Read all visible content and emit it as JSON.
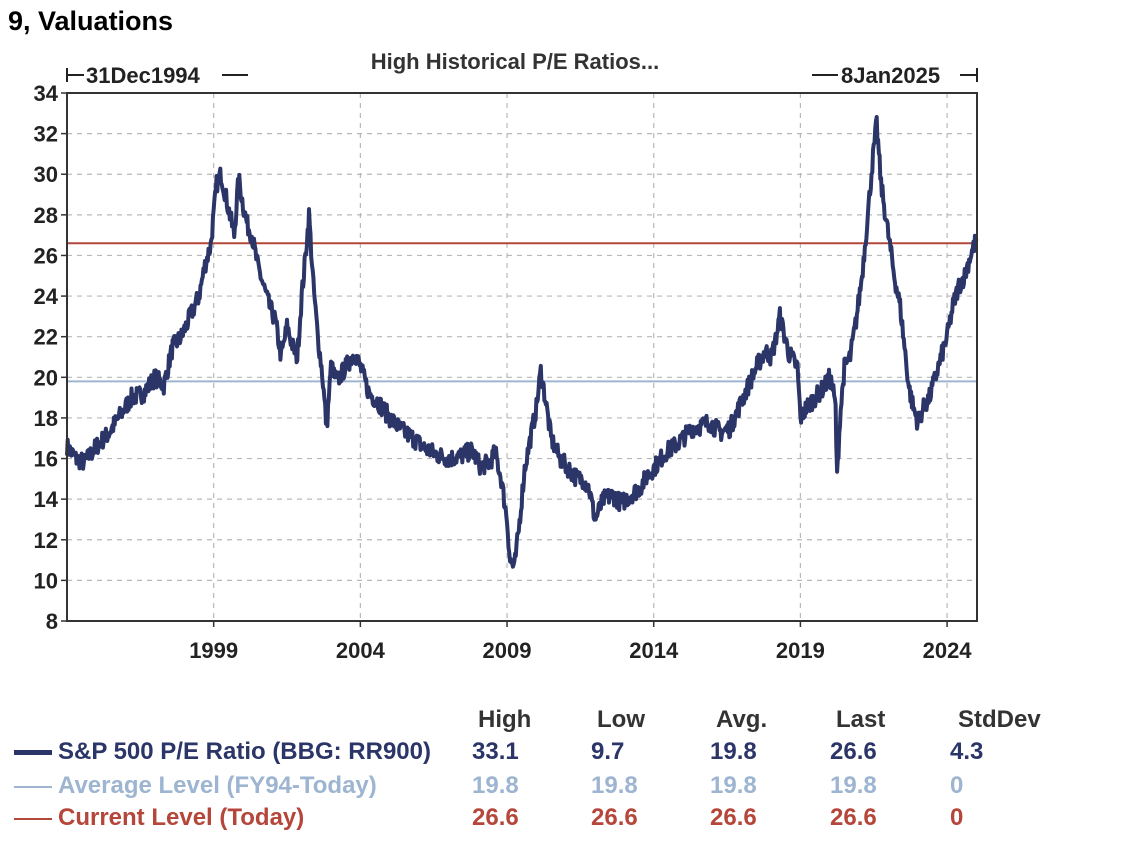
{
  "page_title": "9, Valuations",
  "colors": {
    "series": "#2b3567",
    "average": "#9db5d0",
    "current": "#b5463a",
    "grid": "#b8b8b8"
  },
  "chart_data": {
    "type": "line",
    "title": "High Historical P/E Ratios...",
    "start_label": "31Dec1994",
    "end_label": "8Jan2025",
    "xlim": [
      1994.0,
      2025.02
    ],
    "ylim": [
      8,
      34
    ],
    "yticks": [
      8,
      10,
      12,
      14,
      16,
      18,
      20,
      22,
      24,
      26,
      28,
      30,
      32,
      34
    ],
    "xticks": [
      1999,
      2004,
      2009,
      2014,
      2019,
      2024
    ],
    "xtick_labels": [
      "1999",
      "2004",
      "2009",
      "2014",
      "2019",
      "2024"
    ],
    "reference_lines": [
      {
        "name": "Average Level (FY94-Today)",
        "value": 19.8
      },
      {
        "name": "Current Level (Today)",
        "value": 26.6
      }
    ],
    "series": [
      {
        "name": "S&P 500 P/E Ratio (BBG: RR900)",
        "x": [
          1994.0,
          1994.3,
          1994.6,
          1995.0,
          1995.4,
          1995.8,
          1996.2,
          1996.6,
          1997.0,
          1997.3,
          1997.6,
          1997.9,
          1998.2,
          1998.5,
          1998.7,
          1998.9,
          1999.0,
          1999.1,
          1999.25,
          1999.4,
          1999.55,
          1999.7,
          1999.85,
          2000.0,
          2000.15,
          2000.3,
          2000.5,
          2000.7,
          2000.9,
          2001.1,
          2001.3,
          2001.5,
          2001.7,
          2001.85,
          2002.0,
          2002.1,
          2002.25,
          2002.4,
          2002.55,
          2002.7,
          2002.85,
          2003.0,
          2003.2,
          2003.5,
          2003.8,
          2004.0,
          2004.3,
          2004.6,
          2005.0,
          2005.4,
          2005.8,
          2006.2,
          2006.6,
          2007.0,
          2007.4,
          2007.8,
          2008.1,
          2008.4,
          2008.6,
          2008.8,
          2009.0,
          2009.1,
          2009.25,
          2009.4,
          2009.6,
          2009.8,
          2010.0,
          2010.15,
          2010.3,
          2010.5,
          2010.8,
          2011.1,
          2011.4,
          2011.6,
          2011.8,
          2012.0,
          2012.3,
          2012.6,
          2012.9,
          2013.2,
          2013.5,
          2013.8,
          2014.1,
          2014.4,
          2014.7,
          2015.0,
          2015.3,
          2015.6,
          2015.9,
          2016.1,
          2016.3,
          2016.6,
          2016.9,
          2017.2,
          2017.5,
          2017.8,
          2018.0,
          2018.15,
          2018.3,
          2018.6,
          2018.9,
          2019.0,
          2019.2,
          2019.5,
          2019.8,
          2020.0,
          2020.1,
          2020.2,
          2020.25,
          2020.35,
          2020.5,
          2020.7,
          2020.9,
          2021.1,
          2021.3,
          2021.45,
          2021.6,
          2021.75,
          2021.9,
          2022.05,
          2022.2,
          2022.4,
          2022.55,
          2022.7,
          2022.85,
          2023.0,
          2023.2,
          2023.4,
          2023.6,
          2023.8,
          2024.0,
          2024.2,
          2024.4,
          2024.6,
          2024.8,
          2025.0
        ],
        "values": [
          16.6,
          16.0,
          15.8,
          16.6,
          17.2,
          18.1,
          19.0,
          19.2,
          20.0,
          19.6,
          21.5,
          22.0,
          23.0,
          24.0,
          25.5,
          26.5,
          28.0,
          29.5,
          30.0,
          29.0,
          28.0,
          27.0,
          29.8,
          28.5,
          27.5,
          27.0,
          25.5,
          24.5,
          23.5,
          22.8,
          21.0,
          22.5,
          21.5,
          21.0,
          24.0,
          25.5,
          28.0,
          24.5,
          22.0,
          20.2,
          17.5,
          20.5,
          19.8,
          20.5,
          21.2,
          20.5,
          19.2,
          18.8,
          18.0,
          17.4,
          17.0,
          16.5,
          16.2,
          16.0,
          16.1,
          16.4,
          15.6,
          15.8,
          16.3,
          15.0,
          13.0,
          11.0,
          10.6,
          12.5,
          15.5,
          17.0,
          18.5,
          20.3,
          19.0,
          17.0,
          16.0,
          15.5,
          15.0,
          15.0,
          14.5,
          13.0,
          14.0,
          14.2,
          13.8,
          14.2,
          14.5,
          15.2,
          15.7,
          16.3,
          16.6,
          17.0,
          17.5,
          17.6,
          17.8,
          17.5,
          17.3,
          17.5,
          18.5,
          19.5,
          20.5,
          21.3,
          21.0,
          21.8,
          23.0,
          21.2,
          20.5,
          18.0,
          18.5,
          19.0,
          19.5,
          20.0,
          19.5,
          18.5,
          15.0,
          18.0,
          20.5,
          21.0,
          22.8,
          25.0,
          28.0,
          30.5,
          32.5,
          29.5,
          28.0,
          26.5,
          25.0,
          23.5,
          21.5,
          19.5,
          18.5,
          17.8,
          18.5,
          19.0,
          20.0,
          21.0,
          22.0,
          23.5,
          24.5,
          25.0,
          26.0,
          26.8
        ]
      }
    ]
  },
  "stats": {
    "headers": [
      "High",
      "Low",
      "Avg.",
      "Last",
      "StdDev"
    ],
    "rows": [
      {
        "label": "S&P 500 P/E Ratio (BBG: RR900)",
        "high": "33.1",
        "low": "9.7",
        "avg": "19.8",
        "last": "26.6",
        "stddev": "4.3"
      },
      {
        "label": "Average Level (FY94-Today)",
        "high": "19.8",
        "low": "19.8",
        "avg": "19.8",
        "last": "19.8",
        "stddev": "0"
      },
      {
        "label": "Current Level (Today)",
        "high": "26.6",
        "low": "26.6",
        "avg": "26.6",
        "last": "26.6",
        "stddev": "0"
      }
    ]
  }
}
